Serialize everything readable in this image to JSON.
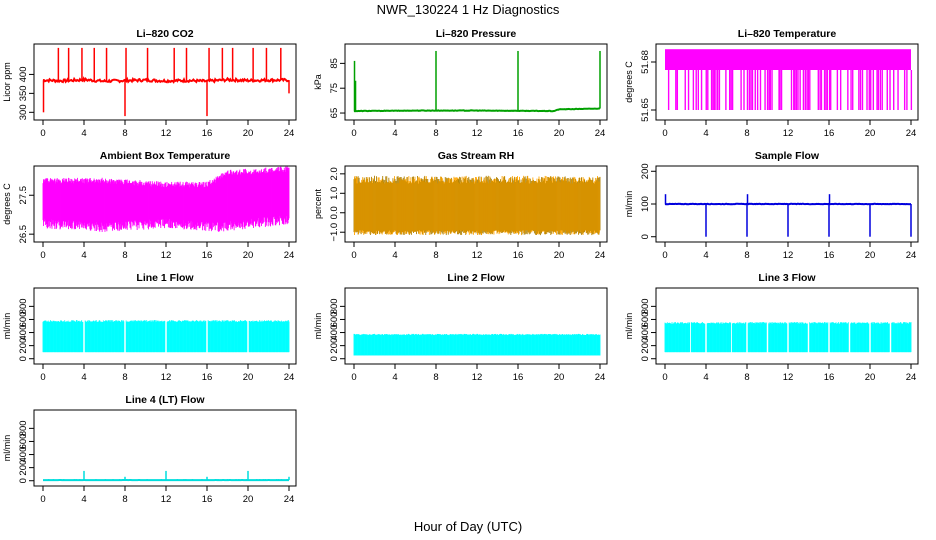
{
  "figure": {
    "title": "NWR_130224  1 Hz Diagnostics",
    "xlabel": "Hour of Day (UTC)"
  },
  "chart_data": [
    {
      "type": "line",
      "title": "Li–820 CO2",
      "ylabel": "Licor ppm",
      "color": "#ff0000",
      "xlim": [
        0,
        24
      ],
      "xticks": [
        "0",
        "4",
        "8",
        "12",
        "16",
        "20",
        "24"
      ],
      "ylim": [
        285,
        475
      ],
      "yticks": [
        "300",
        "350",
        "400"
      ],
      "yvals": [
        300,
        350,
        400
      ],
      "baseline": 385,
      "noise": 12,
      "spikes": [
        {
          "x": 0.05,
          "y": 300
        },
        {
          "x": 1.5,
          "y": 470
        },
        {
          "x": 2.5,
          "y": 470
        },
        {
          "x": 3.8,
          "y": 470
        },
        {
          "x": 5.0,
          "y": 470
        },
        {
          "x": 6.2,
          "y": 470
        },
        {
          "x": 8.0,
          "y": 290
        },
        {
          "x": 8.1,
          "y": 470
        },
        {
          "x": 10.2,
          "y": 470
        },
        {
          "x": 12.8,
          "y": 470
        },
        {
          "x": 14.0,
          "y": 470
        },
        {
          "x": 16.0,
          "y": 290
        },
        {
          "x": 16.2,
          "y": 470
        },
        {
          "x": 17.5,
          "y": 470
        },
        {
          "x": 18.5,
          "y": 470
        },
        {
          "x": 20.5,
          "y": 470
        },
        {
          "x": 21.8,
          "y": 470
        },
        {
          "x": 23.2,
          "y": 470
        },
        {
          "x": 24.0,
          "y": 350
        }
      ],
      "points": [
        [
          0,
          385
        ],
        [
          2,
          383
        ],
        [
          4,
          386
        ],
        [
          6,
          382
        ],
        [
          8,
          384
        ],
        [
          10,
          385
        ],
        [
          12,
          383
        ],
        [
          14,
          384
        ],
        [
          16,
          382
        ],
        [
          18,
          386
        ],
        [
          20,
          384
        ],
        [
          22,
          385
        ],
        [
          24,
          385
        ]
      ]
    },
    {
      "type": "line",
      "title": "Li–820 Pressure",
      "ylabel": "kPa",
      "color": "#00a000",
      "xlim": [
        0,
        24
      ],
      "xticks": [
        "0",
        "4",
        "8",
        "12",
        "16",
        "20",
        "24"
      ],
      "ylim": [
        63,
        92
      ],
      "yticks": [
        "65",
        "75",
        "85"
      ],
      "yvals": [
        65,
        75,
        85
      ],
      "baseline": 66,
      "noise": 0.3,
      "spikes": [
        {
          "x": 0.05,
          "y": 86
        },
        {
          "x": 0.15,
          "y": 78
        },
        {
          "x": 8.0,
          "y": 90
        },
        {
          "x": 16.0,
          "y": 90
        },
        {
          "x": 24.0,
          "y": 90
        }
      ],
      "points": [
        [
          0,
          65.8
        ],
        [
          6,
          66
        ],
        [
          12,
          66
        ],
        [
          19.5,
          65.8
        ],
        [
          20,
          66.5
        ],
        [
          24,
          66.8
        ]
      ]
    },
    {
      "type": "area",
      "title": "Li–820 Temperature",
      "ylabel": "degrees C",
      "color": "#ff00ff",
      "xlim": [
        0,
        24
      ],
      "xticks": [
        "0",
        "4",
        "8",
        "12",
        "16",
        "20",
        "24"
      ],
      "ylim": [
        51.645,
        51.69
      ],
      "yticks": [
        "51.65",
        "51.68"
      ],
      "yvals": [
        51.65,
        51.68
      ],
      "band": [
        51.65,
        51.688
      ],
      "gap_band": [
        51.675,
        51.688
      ]
    },
    {
      "type": "area",
      "title": "Ambient Box Temperature",
      "ylabel": "degrees C",
      "color": "#ff00ff",
      "xlim": [
        0,
        24
      ],
      "xticks": [
        "0",
        "4",
        "8",
        "12",
        "16",
        "20",
        "24"
      ],
      "ylim": [
        26.35,
        28.2
      ],
      "yticks": [
        "26.5",
        "27.5"
      ],
      "yvals": [
        26.5,
        27.5
      ],
      "lower": [
        [
          0,
          26.9
        ],
        [
          6,
          26.8
        ],
        [
          12,
          26.9
        ],
        [
          17,
          26.8
        ],
        [
          24,
          27.0
        ]
      ],
      "upper": [
        [
          0,
          27.8
        ],
        [
          6,
          27.8
        ],
        [
          12,
          27.7
        ],
        [
          16,
          27.7
        ],
        [
          18,
          28.0
        ],
        [
          24,
          28.1
        ]
      ]
    },
    {
      "type": "area",
      "title": "Gas Stream RH",
      "ylabel": "percent",
      "color": "#ffa500",
      "color2": "#b08000",
      "xlim": [
        0,
        24
      ],
      "xticks": [
        "0",
        "4",
        "8",
        "12",
        "16",
        "20",
        "24"
      ],
      "ylim": [
        -1.4,
        2.3
      ],
      "yticks": [
        "−1.0",
        "0.0",
        "1.0",
        "2.0"
      ],
      "yvals": [
        -1.0,
        0.0,
        1.0,
        2.0
      ],
      "band": [
        -0.9,
        1.5
      ],
      "outlier": [
        -1.3,
        2.1
      ]
    },
    {
      "type": "line",
      "title": "Sample Flow",
      "ylabel": "ml/min",
      "color": "#0000dd",
      "xlim": [
        0,
        24
      ],
      "xticks": [
        "0",
        "4",
        "8",
        "12",
        "16",
        "20",
        "24"
      ],
      "ylim": [
        -10,
        210
      ],
      "yticks": [
        "0",
        "100",
        "200"
      ],
      "yvals": [
        0,
        100,
        200
      ],
      "baseline": 100,
      "noise": 2,
      "spikes": [
        {
          "x": 0.05,
          "y": 130
        },
        {
          "x": 4.0,
          "y": 0
        },
        {
          "x": 8.0,
          "y": 0
        },
        {
          "x": 8.05,
          "y": 130
        },
        {
          "x": 12.0,
          "y": 0
        },
        {
          "x": 16.0,
          "y": 0
        },
        {
          "x": 16.05,
          "y": 130
        },
        {
          "x": 20.0,
          "y": 0
        },
        {
          "x": 24.0,
          "y": 0
        }
      ],
      "points": [
        [
          0,
          100
        ],
        [
          24,
          100
        ]
      ]
    },
    {
      "type": "area",
      "title": "Line 1 Flow",
      "ylabel": "ml/min",
      "color": "#00ffff",
      "xlim": [
        0,
        24
      ],
      "xticks": [
        "0",
        "4",
        "8",
        "12",
        "16",
        "20",
        "24"
      ],
      "ylim": [
        -50,
        1050
      ],
      "yticks": [
        "0",
        "200",
        "400",
        "600",
        "800"
      ],
      "yvals": [
        0,
        200,
        400,
        600,
        800
      ],
      "band": [
        100,
        590
      ],
      "gaps": [
        4,
        8,
        12,
        16,
        20
      ]
    },
    {
      "type": "area",
      "title": "Line 2 Flow",
      "ylabel": "ml/min",
      "color": "#00ffff",
      "xlim": [
        0,
        24
      ],
      "xticks": [
        "0",
        "4",
        "8",
        "12",
        "16",
        "20",
        "24"
      ],
      "ylim": [
        -50,
        1050
      ],
      "yticks": [
        "0",
        "200",
        "400",
        "600",
        "800"
      ],
      "yvals": [
        0,
        200,
        400,
        600,
        800
      ],
      "band": [
        50,
        380
      ],
      "gaps": []
    },
    {
      "type": "area",
      "title": "Line 3 Flow",
      "ylabel": "ml/min",
      "color": "#00ffff",
      "xlim": [
        0,
        24
      ],
      "xticks": [
        "0",
        "4",
        "8",
        "12",
        "16",
        "20",
        "24"
      ],
      "ylim": [
        -50,
        1050
      ],
      "yticks": [
        "0",
        "200",
        "400",
        "600",
        "800"
      ],
      "yvals": [
        0,
        200,
        400,
        600,
        800
      ],
      "band": [
        100,
        560
      ],
      "gaps": [
        2.5,
        4,
        6.5,
        8,
        10,
        12,
        14,
        16,
        18,
        20,
        22
      ]
    },
    {
      "type": "line",
      "title": "Line 4 (LT) Flow",
      "ylabel": "ml/min",
      "color": "#00dddd",
      "xlim": [
        0,
        24
      ],
      "xticks": [
        "0",
        "4",
        "8",
        "12",
        "16",
        "20",
        "24"
      ],
      "ylim": [
        -50,
        1050
      ],
      "yticks": [
        "0",
        "200",
        "400",
        "600",
        "800"
      ],
      "yvals": [
        0,
        200,
        400,
        600,
        800
      ],
      "baseline": 10,
      "noise": 2,
      "spikes": [
        {
          "x": 4.0,
          "y": 150
        },
        {
          "x": 8.0,
          "y": 60
        },
        {
          "x": 12.0,
          "y": 150
        },
        {
          "x": 16.0,
          "y": 60
        },
        {
          "x": 20.0,
          "y": 150
        },
        {
          "x": 24.0,
          "y": 60
        }
      ],
      "points": [
        [
          0,
          10
        ],
        [
          24,
          10
        ]
      ]
    }
  ]
}
